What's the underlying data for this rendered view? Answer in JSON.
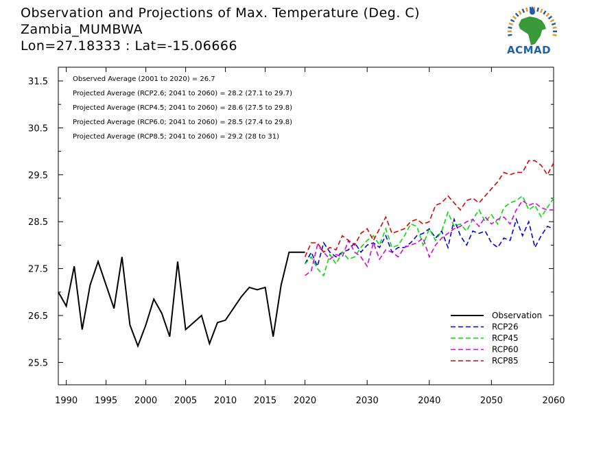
{
  "header": {
    "title_line1": "Observation and Projections of Max. Temperature (Deg. C)",
    "title_line2": "Zambia_MUMBWA",
    "title_line3": "Lon=27.18333 : Lat=-15.06666",
    "logo_text": "ACMAD"
  },
  "annotations": [
    "Observed Average (2001 to 2020) = 26.7",
    "Projected Average (RCP2.6; 2041 to 2060) = 28.2 (27.1 to 29.7)",
    "Projected Average (RCP4.5; 2041 to 2060) = 28.6 (27.5 to 29.8)",
    "Projected Average (RCP6.0; 2041 to 2060) = 28.5 (27.4 to 29.8)",
    "Projected Average (RCP8.5; 2041 to 2060) = 29.2 (28 to 31)"
  ],
  "colors": {
    "observation": "#000000",
    "rcp26": "#0000dd",
    "rcp45": "#00dd00",
    "rcp60": "#dd00dd",
    "rcp85": "#dd0000",
    "logo_blue": "#1f5fa8",
    "logo_green": "#3a9a3a",
    "logo_orange": "#e89a1e"
  },
  "chart_data": {
    "type": "line",
    "title": "Observation and Projections of Max. Temperature (Deg. C)",
    "xlim": [
      1989,
      2060
    ],
    "ylim": [
      25,
      31.5
    ],
    "xticks": [
      1990,
      1995,
      2000,
      2005,
      2010,
      2015,
      2020,
      2030,
      2040,
      2050,
      2060
    ],
    "yticks": [
      25.5,
      26.5,
      27.5,
      28.5,
      29.5,
      30.5,
      31.5
    ],
    "legend_position": "bottom-right",
    "series": [
      {
        "name": "Observation",
        "style": "solid",
        "x": [
          1989,
          1990,
          1991,
          1992,
          1993,
          1994,
          1995,
          1996,
          1997,
          1998,
          1999,
          2000,
          2001,
          2002,
          2003,
          2004,
          2005,
          2006,
          2007,
          2008,
          2009,
          2010,
          2011,
          2012,
          2013,
          2014,
          2015,
          2016,
          2017,
          2018,
          2019,
          2020
        ],
        "y": [
          27.0,
          26.7,
          27.55,
          26.2,
          27.15,
          27.65,
          27.15,
          26.65,
          27.75,
          26.3,
          25.85,
          26.3,
          26.85,
          26.55,
          26.05,
          27.65,
          26.2,
          26.35,
          26.5,
          25.9,
          26.35,
          26.4,
          26.65,
          26.9,
          27.1,
          27.05,
          27.1,
          26.05,
          27.15,
          27.85,
          27.85,
          27.85
        ]
      },
      {
        "name": "RCP26",
        "style": "dashed",
        "x": [
          2020,
          2021,
          2022,
          2023,
          2024,
          2025,
          2026,
          2027,
          2028,
          2029,
          2030,
          2031,
          2032,
          2033,
          2034,
          2035,
          2036,
          2037,
          2038,
          2039,
          2040,
          2041,
          2042,
          2043,
          2044,
          2045,
          2046,
          2047,
          2048,
          2049,
          2050,
          2051,
          2052,
          2053,
          2054,
          2055,
          2056,
          2057,
          2058,
          2059,
          2060
        ],
        "y": [
          27.6,
          27.85,
          27.55,
          28.05,
          27.85,
          27.75,
          27.85,
          27.9,
          28.05,
          27.85,
          28.0,
          28.05,
          27.95,
          28.2,
          27.85,
          27.95,
          27.95,
          28.05,
          28.2,
          28.25,
          28.35,
          28.15,
          28.3,
          27.95,
          28.55,
          28.2,
          28.0,
          28.3,
          28.25,
          28.3,
          28.05,
          27.95,
          28.15,
          28.1,
          28.55,
          28.2,
          28.5,
          27.95,
          28.2,
          28.4,
          28.35
        ]
      },
      {
        "name": "RCP45",
        "style": "dashed",
        "x": [
          2020,
          2021,
          2022,
          2023,
          2024,
          2025,
          2026,
          2027,
          2028,
          2029,
          2030,
          2031,
          2032,
          2033,
          2034,
          2035,
          2036,
          2037,
          2038,
          2039,
          2040,
          2041,
          2042,
          2043,
          2044,
          2045,
          2046,
          2047,
          2048,
          2049,
          2050,
          2051,
          2052,
          2053,
          2054,
          2055,
          2056,
          2057,
          2058,
          2059,
          2060
        ],
        "y": [
          27.6,
          27.75,
          27.5,
          27.35,
          27.8,
          27.6,
          27.85,
          27.7,
          27.75,
          27.95,
          28.1,
          28.2,
          28.0,
          28.35,
          27.95,
          28.0,
          28.2,
          28.45,
          28.4,
          28.0,
          28.35,
          28.1,
          28.3,
          28.7,
          28.4,
          28.45,
          28.3,
          28.55,
          28.75,
          28.5,
          28.65,
          28.45,
          28.8,
          28.9,
          28.95,
          29.05,
          28.75,
          28.85,
          28.6,
          28.8,
          29.0
        ]
      },
      {
        "name": "RCP60",
        "style": "dashed",
        "x": [
          2020,
          2021,
          2022,
          2023,
          2024,
          2025,
          2026,
          2027,
          2028,
          2029,
          2030,
          2031,
          2032,
          2033,
          2034,
          2035,
          2036,
          2037,
          2038,
          2039,
          2040,
          2041,
          2042,
          2043,
          2044,
          2045,
          2046,
          2047,
          2048,
          2049,
          2050,
          2051,
          2052,
          2053,
          2054,
          2055,
          2056,
          2057,
          2058,
          2059,
          2060
        ],
        "y": [
          27.35,
          27.45,
          28.0,
          27.85,
          27.7,
          27.8,
          27.75,
          28.1,
          27.85,
          27.75,
          27.55,
          28.05,
          27.7,
          27.9,
          27.85,
          27.75,
          27.95,
          28.0,
          28.05,
          28.15,
          27.75,
          28.0,
          28.15,
          28.25,
          28.35,
          28.4,
          28.5,
          28.55,
          28.4,
          28.6,
          28.45,
          28.55,
          28.6,
          28.45,
          28.75,
          28.95,
          28.85,
          28.9,
          28.8,
          28.75,
          28.75
        ]
      },
      {
        "name": "RCP85",
        "style": "dashed",
        "x": [
          2020,
          2021,
          2022,
          2023,
          2024,
          2025,
          2026,
          2027,
          2028,
          2029,
          2030,
          2031,
          2032,
          2033,
          2034,
          2035,
          2036,
          2037,
          2038,
          2039,
          2040,
          2041,
          2042,
          2043,
          2044,
          2045,
          2046,
          2047,
          2048,
          2049,
          2050,
          2051,
          2052,
          2053,
          2054,
          2055,
          2056,
          2057,
          2058,
          2059,
          2060
        ],
        "y": [
          27.75,
          28.05,
          28.05,
          27.85,
          27.95,
          27.9,
          28.2,
          28.1,
          28.0,
          28.25,
          28.35,
          28.1,
          28.35,
          28.6,
          28.25,
          28.3,
          28.35,
          28.5,
          28.55,
          28.45,
          28.5,
          28.85,
          28.9,
          29.05,
          28.9,
          28.75,
          28.95,
          29.0,
          28.9,
          29.05,
          29.2,
          29.35,
          29.55,
          29.5,
          29.55,
          29.55,
          29.8,
          29.8,
          29.7,
          29.5,
          29.75
        ]
      }
    ]
  }
}
